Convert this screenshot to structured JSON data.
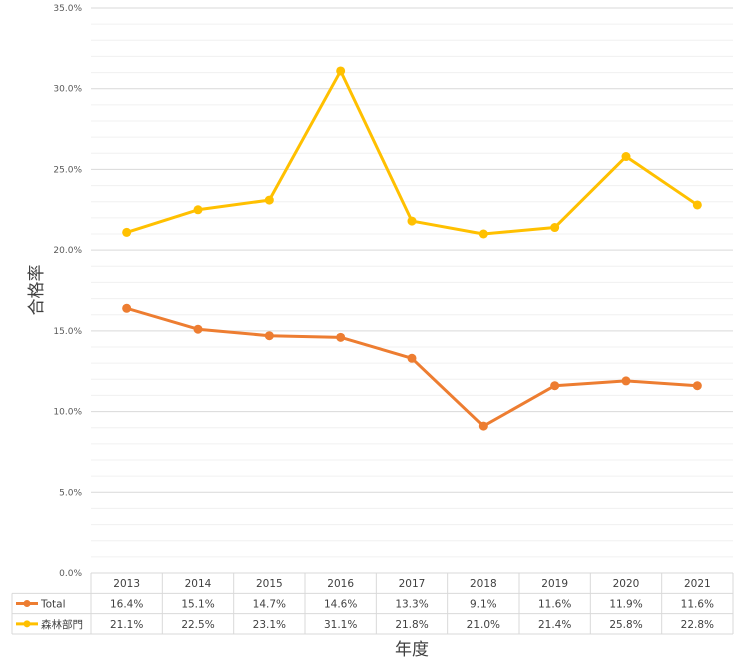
{
  "chart_data": {
    "type": "line",
    "categories": [
      "2013",
      "2014",
      "2015",
      "2016",
      "2017",
      "2018",
      "2019",
      "2020",
      "2021"
    ],
    "series": [
      {
        "name": "Total",
        "color": "#ED7D31",
        "values": [
          16.4,
          15.1,
          14.7,
          14.6,
          13.3,
          9.1,
          11.6,
          11.9,
          11.6
        ],
        "labels": [
          "16.4%",
          "15.1%",
          "14.7%",
          "14.6%",
          "13.3%",
          "9.1%",
          "11.6%",
          "11.9%",
          "11.6%"
        ]
      },
      {
        "name": "森林部門",
        "color": "#FFC000",
        "values": [
          21.1,
          22.5,
          23.1,
          31.1,
          21.8,
          21.0,
          21.4,
          25.8,
          22.8
        ],
        "labels": [
          "21.1%",
          "22.5%",
          "23.1%",
          "31.1%",
          "21.8%",
          "21.0%",
          "21.4%",
          "25.8%",
          "22.8%"
        ]
      }
    ],
    "xlabel": "年度",
    "ylabel": "合格率",
    "ylim": [
      0,
      35
    ],
    "yticks": [
      0,
      5,
      10,
      15,
      20,
      25,
      30,
      35
    ],
    "ytick_labels": [
      "0.0%",
      "5.0%",
      "10.0%",
      "15.0%",
      "20.0%",
      "25.0%",
      "30.0%",
      "35.0%"
    ],
    "grid": true,
    "legend": "data-table"
  }
}
